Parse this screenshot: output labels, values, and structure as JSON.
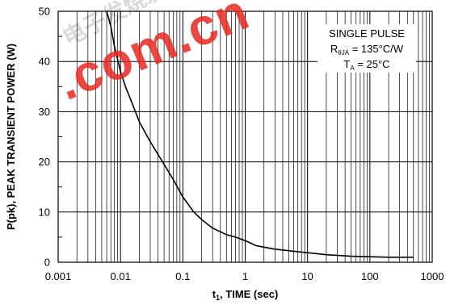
{
  "chart_data": {
    "type": "line",
    "x_scale": "log",
    "xlim": [
      0.001,
      1000
    ],
    "ylim": [
      0,
      50
    ],
    "x_ticks": [
      "0.001",
      "0.01",
      "0.1",
      "1",
      "10",
      "100",
      "1000"
    ],
    "y_ticks": [
      "0",
      "10",
      "20",
      "30",
      "40",
      "50"
    ],
    "xlabel": {
      "main": "t",
      "sub": "1",
      "rest": ", TIME (sec)"
    },
    "ylabel": "P(pk), PEAK TRANSIENT POWER (W)",
    "grid": true,
    "legend_position": "top-right",
    "annotation": {
      "line1": "SINGLE PULSE",
      "line2_main": "R",
      "line2_sub": "θJA",
      "line2_rest": " = 135°C/W",
      "line3_main": "T",
      "line3_sub": "A",
      "line3_rest": " = 25°C"
    },
    "series": [
      {
        "color": "#000000",
        "x": [
          0.006,
          0.007,
          0.008,
          0.01,
          0.012,
          0.015,
          0.02,
          0.03,
          0.05,
          0.07,
          0.1,
          0.15,
          0.2,
          0.3,
          0.5,
          0.7,
          1,
          1.5,
          2,
          3,
          5,
          7,
          10,
          20,
          50,
          100,
          200,
          500
        ],
        "y": [
          50,
          47,
          43,
          38,
          35,
          32,
          28,
          24,
          19.5,
          16.5,
          13,
          10,
          8.5,
          6.8,
          5.5,
          5,
          4.3,
          3.3,
          3,
          2.6,
          2.3,
          2.1,
          1.9,
          1.5,
          1.2,
          1.1,
          1.0,
          1.0
        ]
      }
    ]
  },
  "watermark": {
    "big_text": ".com.cn",
    "small_text": "电子发烧友"
  }
}
